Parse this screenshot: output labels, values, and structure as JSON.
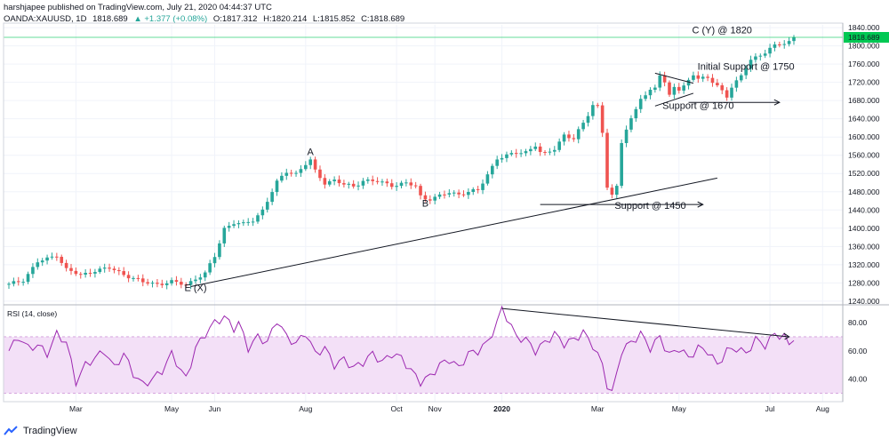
{
  "header": {
    "publisher_line": "harshjapee published on TradingView.com, July 21, 2020 04:44:37 UTC",
    "symbol": "OANDA:XAUUSD, 1D",
    "last": "1818.689",
    "change": "▲ +1.377 (+0.08%)",
    "open": "O:1817.312",
    "high": "H:1820.214",
    "low": "L:1815.852",
    "close": "C:1818.689"
  },
  "footer": {
    "brand": "TradingView"
  },
  "colors": {
    "up": "#26a69a",
    "down": "#ef5350",
    "rsi_line": "#9c27b0",
    "rsi_band": "#f3e0f7",
    "price_line": "#00c853",
    "grid": "#f0f3fa"
  },
  "chart_data": [
    {
      "type": "candlestick",
      "title": "OANDA:XAUUSD, 1D",
      "x_ticks": [
        "Mar",
        "May",
        "Jun",
        "Aug",
        "Oct",
        "Nov",
        "2020",
        "Mar",
        "May",
        "Jul",
        "Aug"
      ],
      "y_ticks": [
        "1240.000",
        "1280.000",
        "1320.000",
        "1360.000",
        "1400.000",
        "1440.000",
        "1480.000",
        "1520.000",
        "1560.000",
        "1600.000",
        "1640.000",
        "1680.000",
        "1720.000",
        "1760.000",
        "1800.000",
        "1840.000"
      ],
      "ylim": [
        1232,
        1846
      ],
      "last_price_label": "1818.689",
      "close_path": [
        [
          0,
          1276
        ],
        [
          3,
          1287
        ],
        [
          6,
          1326
        ],
        [
          8,
          1332
        ],
        [
          10,
          1342
        ],
        [
          12,
          1310
        ],
        [
          15,
          1296
        ],
        [
          18,
          1308
        ],
        [
          21,
          1312
        ],
        [
          25,
          1295
        ],
        [
          28,
          1281
        ],
        [
          31,
          1278
        ],
        [
          34,
          1282
        ],
        [
          37,
          1276
        ],
        [
          39,
          1290
        ],
        [
          41,
          1300
        ],
        [
          43,
          1338
        ],
        [
          45,
          1400
        ],
        [
          47,
          1412
        ],
        [
          49,
          1408
        ],
        [
          51,
          1418
        ],
        [
          53,
          1440
        ],
        [
          56,
          1500
        ],
        [
          58,
          1525
        ],
        [
          60,
          1520
        ],
        [
          62,
          1540
        ],
        [
          63,
          1548
        ],
        [
          64,
          1525
        ],
        [
          66,
          1500
        ],
        [
          68,
          1505
        ],
        [
          70,
          1495
        ],
        [
          72,
          1492
        ],
        [
          74,
          1505
        ],
        [
          77,
          1502
        ],
        [
          80,
          1495
        ],
        [
          83,
          1498
        ],
        [
          85,
          1492
        ],
        [
          86,
          1470
        ],
        [
          87,
          1466
        ],
        [
          88,
          1465
        ],
        [
          90,
          1470
        ],
        [
          92,
          1478
        ],
        [
          94,
          1475
        ],
        [
          96,
          1480
        ],
        [
          98,
          1482
        ],
        [
          100,
          1518
        ],
        [
          102,
          1554
        ],
        [
          104,
          1558
        ],
        [
          106,
          1565
        ],
        [
          108,
          1568
        ],
        [
          110,
          1582
        ],
        [
          111,
          1565
        ],
        [
          112,
          1562
        ],
        [
          114,
          1575
        ],
        [
          116,
          1605
        ],
        [
          118,
          1595
        ],
        [
          120,
          1630
        ],
        [
          121,
          1650
        ],
        [
          122,
          1672
        ],
        [
          123,
          1668
        ],
        [
          124,
          1610
        ],
        [
          125,
          1490
        ],
        [
          126,
          1470
        ],
        [
          127,
          1490
        ],
        [
          128,
          1590
        ],
        [
          129,
          1620
        ],
        [
          130,
          1640
        ],
        [
          131,
          1660
        ],
        [
          132,
          1685
        ],
        [
          133,
          1690
        ],
        [
          135,
          1710
        ],
        [
          136,
          1740
        ],
        [
          137,
          1720
        ],
        [
          138,
          1690
        ],
        [
          139,
          1710
        ],
        [
          140,
          1702
        ],
        [
          141,
          1710
        ],
        [
          143,
          1740
        ],
        [
          144,
          1730
        ],
        [
          146,
          1728
        ],
        [
          148,
          1712
        ],
        [
          150,
          1690
        ],
        [
          151,
          1712
        ],
        [
          153,
          1732
        ],
        [
          155,
          1770
        ],
        [
          157,
          1780
        ],
        [
          159,
          1795
        ],
        [
          161,
          1802
        ],
        [
          163,
          1810
        ],
        [
          164,
          1818.689
        ]
      ],
      "annotations": {
        "wave_labels": [
          {
            "text": "A",
            "x": 63,
            "y": 1560
          },
          {
            "text": "B",
            "x": 87,
            "y": 1447
          },
          {
            "text": "E (X)",
            "x": 39,
            "y": 1262
          },
          {
            "text": "C (Y) @ 1820",
            "x": 149,
            "y": 1827
          }
        ],
        "levels": [
          {
            "text": "Support @ 1450",
            "x": 134,
            "y": 1443,
            "from_x": 111,
            "to_x": 145,
            "level": 1452
          },
          {
            "text": "Support @ 1670",
            "x": 144,
            "y": 1662,
            "from_x": 142,
            "to_x": 161,
            "level": 1676
          },
          {
            "text": "Initial Support @ 1750",
            "x": 154,
            "y": 1748
          }
        ],
        "trendlines": [
          {
            "from": [
              38,
              1272
            ],
            "to": [
              148,
              1510
            ]
          },
          {
            "from": [
              135,
              1740
            ],
            "to": [
              143,
              1718
            ]
          },
          {
            "from": [
              135,
              1668
            ],
            "to": [
              143,
              1696
            ]
          }
        ]
      }
    },
    {
      "type": "line",
      "title": "RSI (14, close)",
      "y_ticks": [
        "40.00",
        "60.00",
        "80.00"
      ],
      "ylim": [
        24,
        92
      ],
      "band": [
        30,
        70
      ],
      "series": [
        {
          "values": [
            [
              0,
              60
            ],
            [
              2,
              70
            ],
            [
              4,
              62
            ],
            [
              6,
              64
            ],
            [
              8,
              58
            ],
            [
              10,
              72
            ],
            [
              12,
              66
            ],
            [
              14,
              38
            ],
            [
              16,
              50
            ],
            [
              18,
              55
            ],
            [
              20,
              60
            ],
            [
              22,
              48
            ],
            [
              24,
              58
            ],
            [
              26,
              44
            ],
            [
              28,
              36
            ],
            [
              30,
              40
            ],
            [
              32,
              46
            ],
            [
              34,
              58
            ],
            [
              36,
              46
            ],
            [
              37,
              40
            ],
            [
              39,
              62
            ],
            [
              41,
              72
            ],
            [
              43,
              80
            ],
            [
              45,
              84
            ],
            [
              47,
              76
            ],
            [
              48,
              80
            ],
            [
              50,
              62
            ],
            [
              52,
              70
            ],
            [
              54,
              66
            ],
            [
              56,
              82
            ],
            [
              58,
              70
            ],
            [
              60,
              65
            ],
            [
              62,
              73
            ],
            [
              64,
              58
            ],
            [
              66,
              62
            ],
            [
              68,
              50
            ],
            [
              70,
              54
            ],
            [
              72,
              48
            ],
            [
              74,
              52
            ],
            [
              76,
              58
            ],
            [
              78,
              52
            ],
            [
              80,
              58
            ],
            [
              82,
              55
            ],
            [
              84,
              46
            ],
            [
              86,
              38
            ],
            [
              88,
              42
            ],
            [
              90,
              50
            ],
            [
              92,
              54
            ],
            [
              94,
              48
            ],
            [
              96,
              58
            ],
            [
              98,
              60
            ],
            [
              100,
              66
            ],
            [
              102,
              80
            ],
            [
              103,
              90
            ],
            [
              104,
              84
            ],
            [
              106,
              70
            ],
            [
              108,
              68
            ],
            [
              110,
              60
            ],
            [
              112,
              66
            ],
            [
              114,
              72
            ],
            [
              116,
              65
            ],
            [
              118,
              68
            ],
            [
              120,
              73
            ],
            [
              122,
              64
            ],
            [
              124,
              50
            ],
            [
              125,
              36
            ],
            [
              126,
              30
            ],
            [
              127,
              44
            ],
            [
              128,
              60
            ],
            [
              130,
              66
            ],
            [
              132,
              72
            ],
            [
              134,
              62
            ],
            [
              136,
              70
            ],
            [
              137,
              63
            ],
            [
              138,
              57
            ],
            [
              140,
              62
            ],
            [
              142,
              55
            ],
            [
              144,
              62
            ],
            [
              146,
              60
            ],
            [
              148,
              50
            ],
            [
              150,
              60
            ],
            [
              152,
              62
            ],
            [
              154,
              58
            ],
            [
              156,
              68
            ],
            [
              158,
              64
            ],
            [
              160,
              72
            ],
            [
              162,
              70
            ],
            [
              163,
              64
            ],
            [
              164,
              70
            ]
          ]
        }
      ],
      "trendline": {
        "from": [
          103,
          90
        ],
        "to": [
          163,
          70
        ]
      }
    }
  ]
}
